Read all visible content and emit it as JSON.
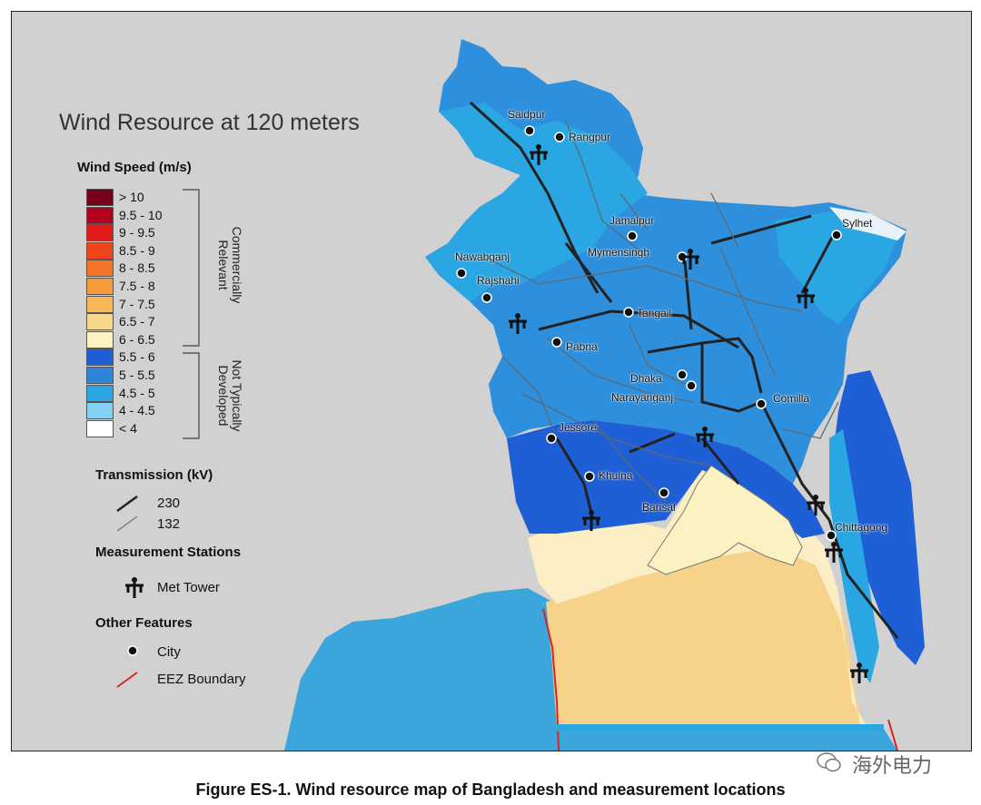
{
  "legend": {
    "title": "Wind Resource at 120 meters",
    "wind_speed_heading": "Wind Speed (m/s)",
    "wind_classes": [
      {
        "label": "> 10",
        "color": "#7a0019"
      },
      {
        "label": "9.5 - 10",
        "color": "#b3001e"
      },
      {
        "label": "9 - 9.5",
        "color": "#e01b1b"
      },
      {
        "label": "8.5 - 9",
        "color": "#f0451a"
      },
      {
        "label": "8 - 8.5",
        "color": "#f4752a"
      },
      {
        "label": "7.5 - 8",
        "color": "#f79a3a"
      },
      {
        "label": "7 - 7.5",
        "color": "#f9b758"
      },
      {
        "label": "6.5 - 7",
        "color": "#f6d88c"
      },
      {
        "label": "6 - 6.5",
        "color": "#fbf2c2"
      },
      {
        "label": "5.5 - 6",
        "color": "#1f5fd6"
      },
      {
        "label": "5 - 5.5",
        "color": "#2e86dc"
      },
      {
        "label": "4.5 - 5",
        "color": "#2aa6e2"
      },
      {
        "label": "4 - 4.5",
        "color": "#83d1f0"
      },
      {
        "label": "< 4",
        "color": "#ffffff"
      }
    ],
    "group_commercial": "Commercially Relevant",
    "group_commercial_line1": "Commercially",
    "group_commercial_line2": "Relevant",
    "group_not_developed_line1": "Not Typically",
    "group_not_developed_line2": "Developed",
    "transmission_heading": "Transmission (kV)",
    "transmission_230": "230",
    "transmission_132": "132",
    "stations_heading": "Measurement Stations",
    "met_tower": "Met Tower",
    "other_heading": "Other Features",
    "city": "City",
    "eez": "EEZ Boundary"
  },
  "cities": [
    {
      "name": "Saidpur"
    },
    {
      "name": "Rangpur"
    },
    {
      "name": "Jamalpur"
    },
    {
      "name": "Sylhet"
    },
    {
      "name": "Mymensingh"
    },
    {
      "name": "Nawabganj"
    },
    {
      "name": "Rajshahi"
    },
    {
      "name": "Tangail"
    },
    {
      "name": "Pabna"
    },
    {
      "name": "Dhaka"
    },
    {
      "name": "Narayanganj"
    },
    {
      "name": "Comilla"
    },
    {
      "name": "Jessore"
    },
    {
      "name": "Khulna"
    },
    {
      "name": "Barisal"
    },
    {
      "name": "Chittagong"
    }
  ],
  "caption": "Figure ES-1. Wind resource map of Bangladesh and measurement locations",
  "watermark": "海外电力",
  "colors": {
    "land_gray": "#d1d1d1",
    "sea": "#3aa6dc",
    "north_blue": "#2e8fdc",
    "inland_blue": "#2aa6e2",
    "south_blue": "#1f5fd6",
    "coastal_cream": "#fbeec4",
    "offshore_yellow": "#f6d28a",
    "eez_red": "#e02020"
  }
}
